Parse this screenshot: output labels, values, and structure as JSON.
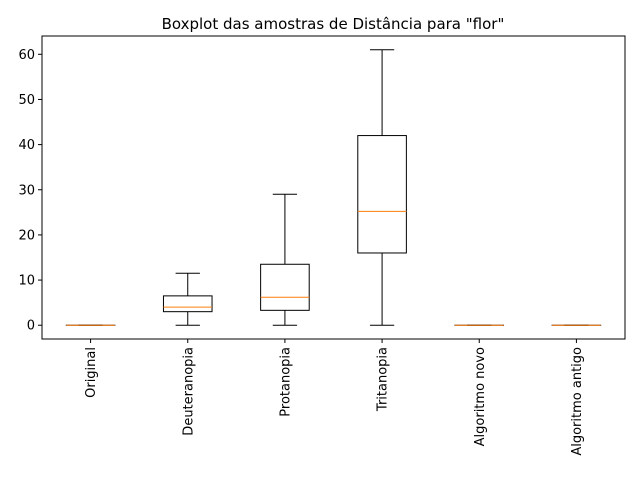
{
  "chart_data": {
    "type": "boxplot",
    "title": "Boxplot das amostras de Distância para \"flor\"",
    "xlabel": "",
    "ylabel": "",
    "categories": [
      "Original",
      "Deuteranopia",
      "Protanopia",
      "Tritanopia",
      "Algoritmo novo",
      "Algoritmo antigo"
    ],
    "boxes": [
      {
        "whislo": 0,
        "q1": 0,
        "med": 0,
        "q3": 0,
        "whishi": 0
      },
      {
        "whislo": 0,
        "q1": 3,
        "med": 4,
        "q3": 6.5,
        "whishi": 11.5
      },
      {
        "whislo": 0,
        "q1": 3.3,
        "med": 6.2,
        "q3": 13.5,
        "whishi": 29
      },
      {
        "whislo": 0,
        "q1": 16,
        "med": 25.2,
        "q3": 42,
        "whishi": 61
      },
      {
        "whislo": 0,
        "q1": 0,
        "med": 0,
        "q3": 0,
        "whishi": 0
      },
      {
        "whislo": 0,
        "q1": 0,
        "med": 0,
        "q3": 0,
        "whishi": 0
      }
    ],
    "yticks": [
      0,
      10,
      20,
      30,
      40,
      50,
      60
    ],
    "ylim": [
      -3.05,
      64.05
    ],
    "grid": false,
    "legend": "none",
    "colors": {
      "box": "#000000",
      "median": "#ff7f0e"
    }
  }
}
